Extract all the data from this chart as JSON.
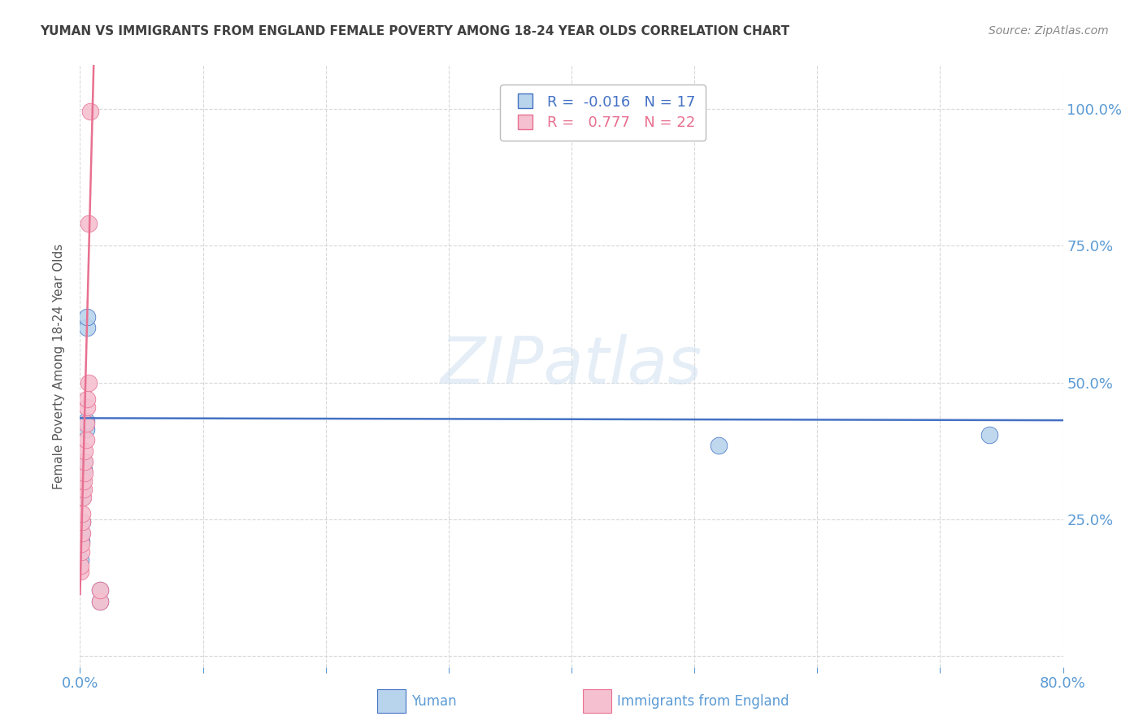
{
  "title": "YUMAN VS IMMIGRANTS FROM ENGLAND FEMALE POVERTY AMONG 18-24 YEAR OLDS CORRELATION CHART",
  "source": "Source: ZipAtlas.com",
  "ylabel": "Female Poverty Among 18-24 Year Olds",
  "xlim": [
    0.0,
    0.8
  ],
  "ylim": [
    -0.02,
    1.08
  ],
  "yticks": [
    0.0,
    0.25,
    0.5,
    0.75,
    1.0
  ],
  "ytick_labels": [
    "",
    "25.0%",
    "50.0%",
    "75.0%",
    "100.0%"
  ],
  "xticks": [
    0.0,
    0.1,
    0.2,
    0.3,
    0.4,
    0.5,
    0.6,
    0.7,
    0.8
  ],
  "xtick_labels": [
    "0.0%",
    "",
    "",
    "",
    "",
    "",
    "",
    "",
    "80.0%"
  ],
  "yuman_color": "#b8d4ec",
  "england_color": "#f5c0d0",
  "trend_yuman_color": "#4472c4",
  "trend_england_color": "#e87090",
  "legend_r_yuman": "-0.016",
  "legend_n_yuman": "17",
  "legend_r_england": "0.777",
  "legend_n_england": "22",
  "yuman_x": [
    0.0005,
    0.001,
    0.001,
    0.0015,
    0.002,
    0.002,
    0.002,
    0.003,
    0.003,
    0.005,
    0.005,
    0.006,
    0.006,
    0.016,
    0.016,
    0.52,
    0.74
  ],
  "yuman_y": [
    0.175,
    0.21,
    0.225,
    0.245,
    0.29,
    0.305,
    0.32,
    0.34,
    0.355,
    0.415,
    0.43,
    0.6,
    0.62,
    0.1,
    0.12,
    0.385,
    0.405
  ],
  "england_x": [
    0.0003,
    0.0005,
    0.001,
    0.001,
    0.0015,
    0.002,
    0.002,
    0.0025,
    0.003,
    0.003,
    0.004,
    0.004,
    0.004,
    0.005,
    0.005,
    0.006,
    0.006,
    0.007,
    0.007,
    0.008,
    0.016,
    0.016
  ],
  "england_y": [
    0.155,
    0.165,
    0.19,
    0.205,
    0.225,
    0.245,
    0.26,
    0.29,
    0.305,
    0.32,
    0.335,
    0.355,
    0.375,
    0.395,
    0.425,
    0.455,
    0.47,
    0.5,
    0.79,
    0.995,
    0.1,
    0.12
  ],
  "watermark_text": "ZIPatlas",
  "background_color": "#ffffff",
  "grid_color": "#d8d8d8",
  "title_color": "#404040",
  "source_color": "#888888",
  "right_label_color": "#5b9bd5",
  "ylabel_color": "#555555"
}
